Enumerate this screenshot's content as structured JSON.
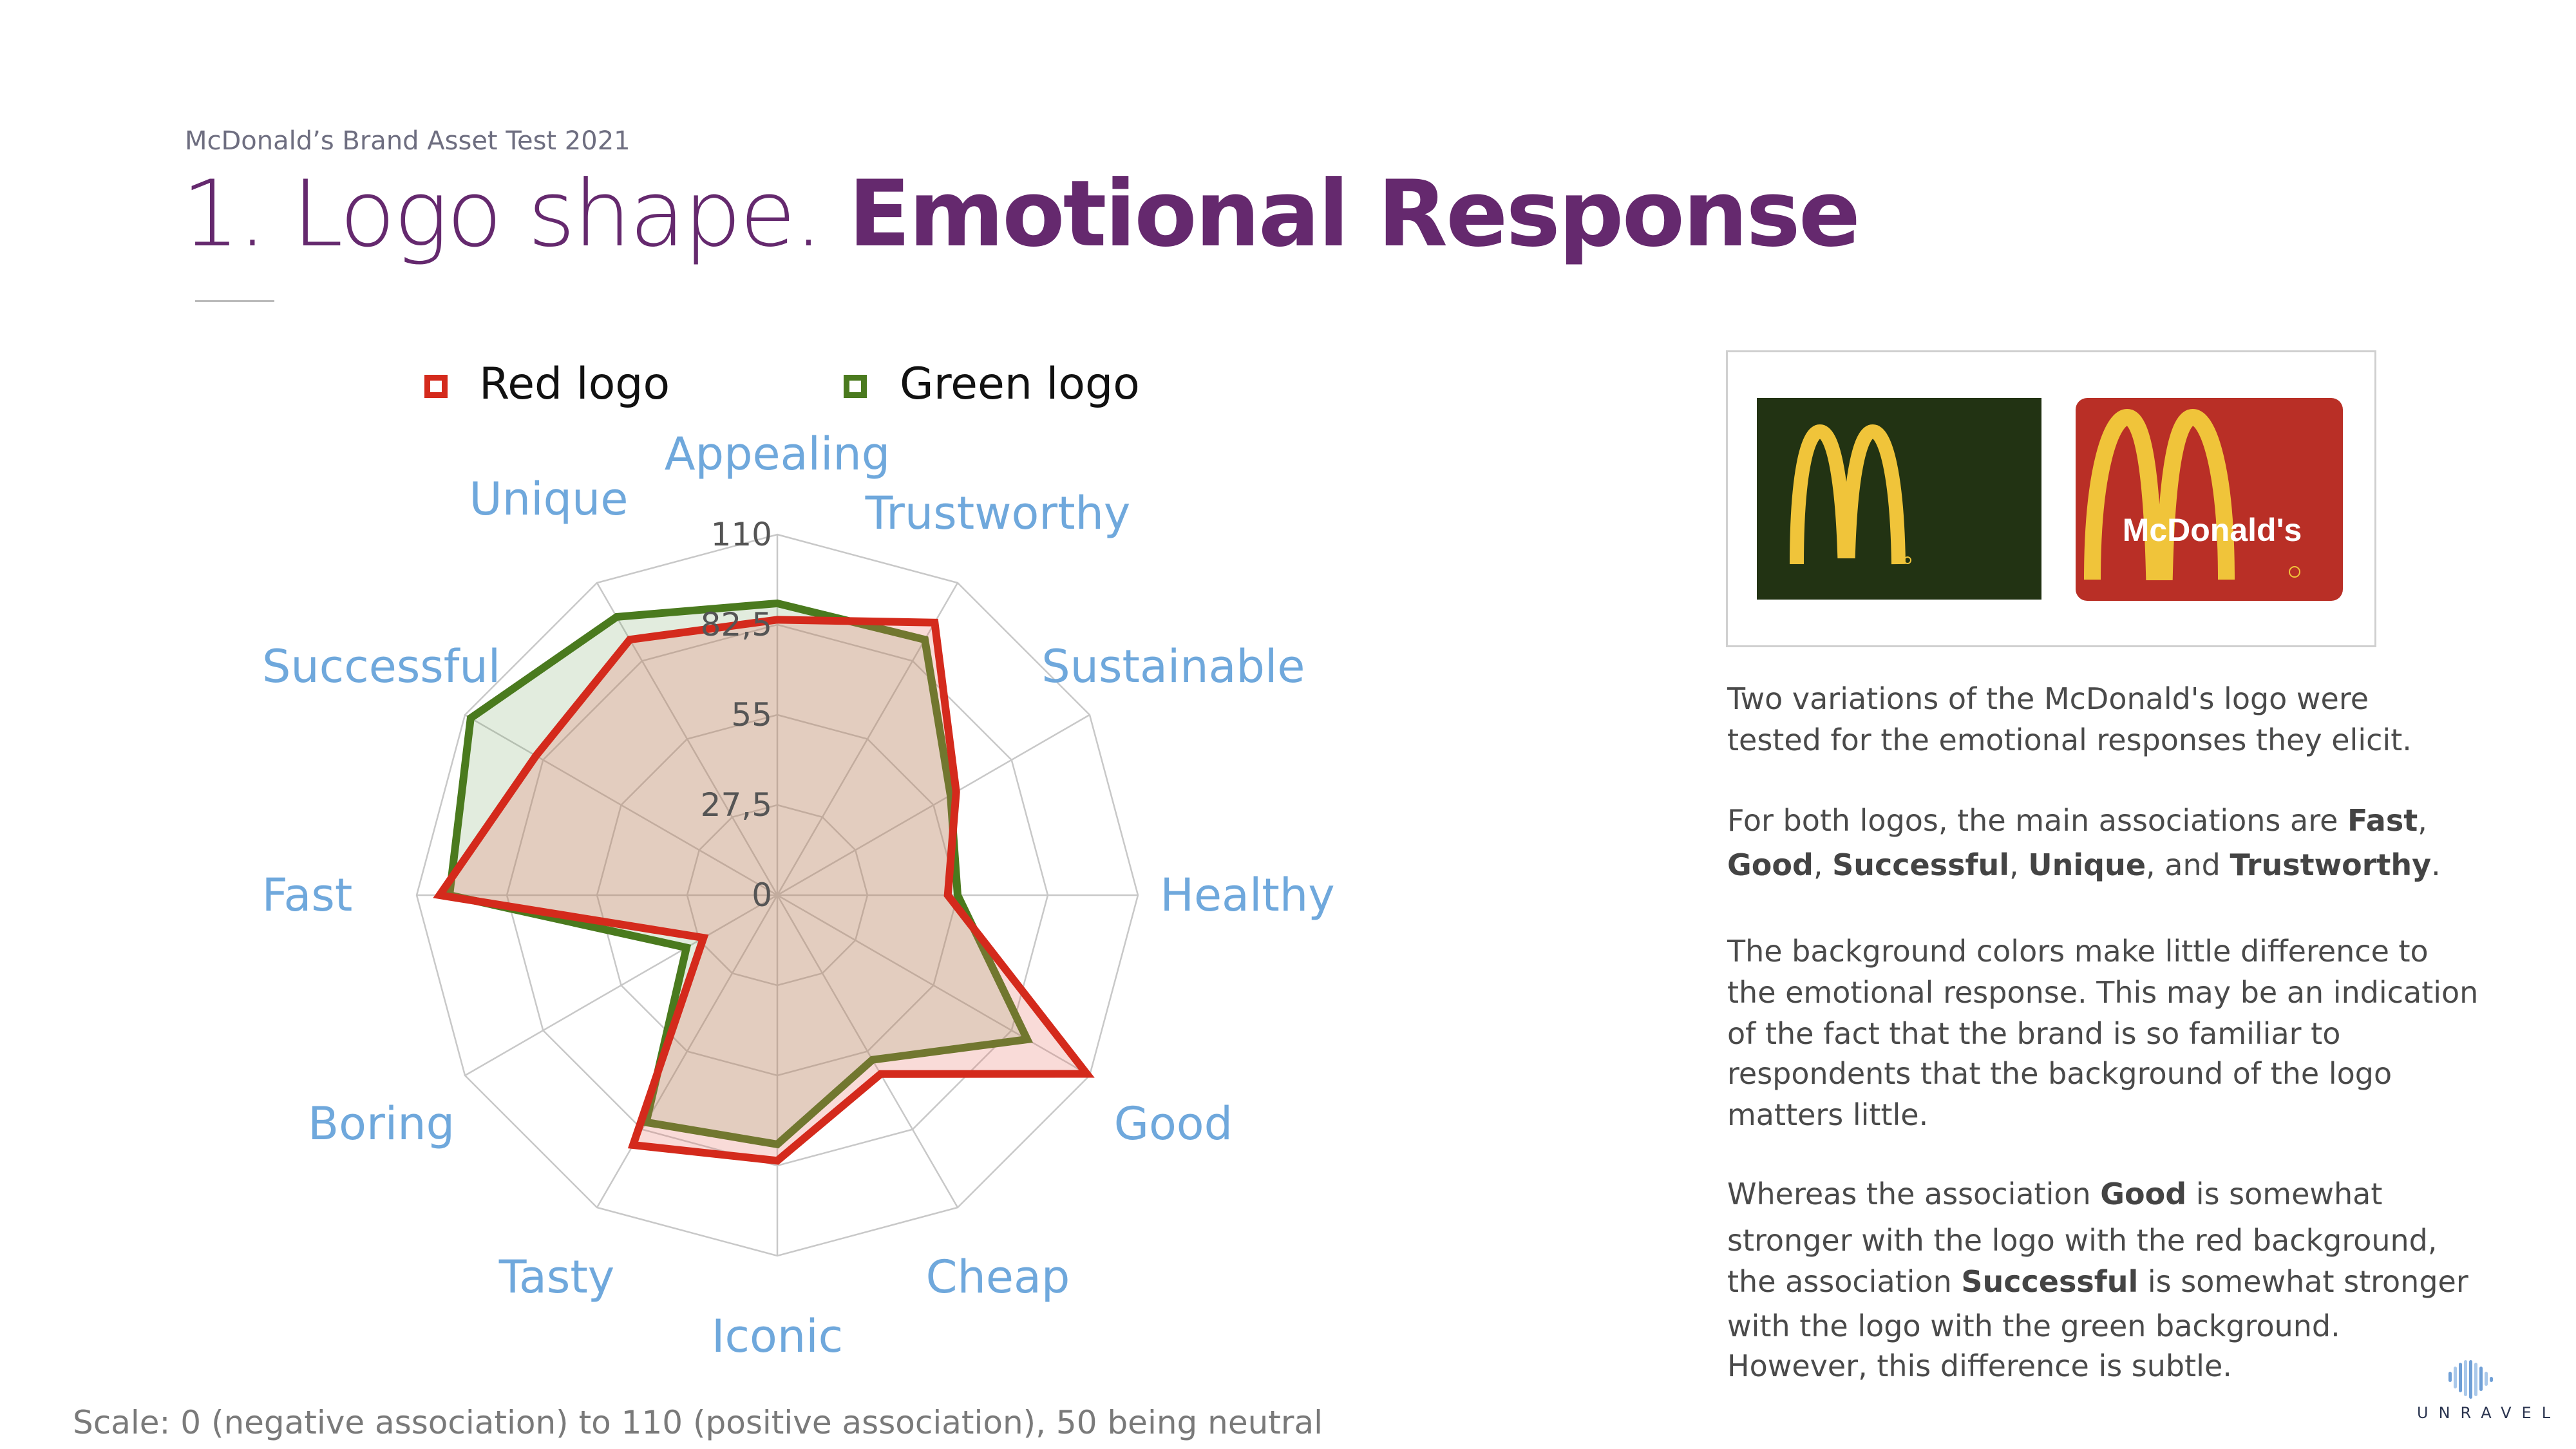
{
  "header": {
    "subtitle": "McDonald’s Brand Asset Test 2021",
    "title_light": "1. Logo shape. ",
    "title_bold": "Emotional Response"
  },
  "colors": {
    "title_purple": "#65296e",
    "red_series": "#d42a1c",
    "green_series": "#4a7a1e",
    "axis_label": "#6fa8dc"
  },
  "chart_data": {
    "type": "radar",
    "axes": [
      "Appealing",
      "Trustworthy",
      "Sustainable",
      "Healthy",
      "Good",
      "Cheap",
      "Iconic",
      "Tasty",
      "Boring",
      "Fast",
      "Successful",
      "Unique"
    ],
    "tick_labels": [
      "0",
      "27,5",
      "55",
      "82,5",
      "110"
    ],
    "ticks": [
      0,
      27.5,
      55,
      82.5,
      110
    ],
    "range": [
      0,
      110
    ],
    "grid": true,
    "legend_placement": "top",
    "series": [
      {
        "name": "Red logo",
        "color": "#d42a1c",
        "values": [
          84,
          96,
          63,
          52,
          109,
          63,
          81,
          88,
          26,
          103,
          85,
          90
        ]
      },
      {
        "name": "Green logo",
        "color": "#4a7a1e",
        "values": [
          89,
          90,
          61,
          55,
          88,
          58,
          76,
          80,
          32,
          100,
          108,
          98
        ]
      }
    ]
  },
  "scale_note": "Scale: 0 (negative association) to 110 (positive association), 50 being neutral",
  "logos": {
    "red_logo_wordmark": "McDonald's"
  },
  "description": {
    "p1": [
      "Two variations of the McDonald's logo were",
      "tested for the emotional responses they elicit."
    ],
    "p2": {
      "l1": [
        "For both logos, the main associations are ",
        "Fast",
        ","
      ],
      "l2": [
        "Good",
        ", ",
        "Successful",
        ", ",
        "Unique",
        ", and ",
        "Trustworthy",
        "."
      ]
    },
    "p3": [
      "The background colors make little difference to",
      "the emotional response. This may be an indication",
      "of the fact that the brand is so familiar to",
      "respondents that the background of the logo",
      "matters little."
    ],
    "p4": {
      "l1": [
        "Whereas the association ",
        "Good",
        " is somewhat"
      ],
      "l2": "stronger with the logo with the red background,",
      "l3": [
        "the association ",
        "Successful",
        " is somewhat stronger"
      ],
      "l4": "with the logo with the green background.",
      "l5": "However, this difference is subtle."
    }
  },
  "brand": {
    "name": "UNRAVEL"
  }
}
